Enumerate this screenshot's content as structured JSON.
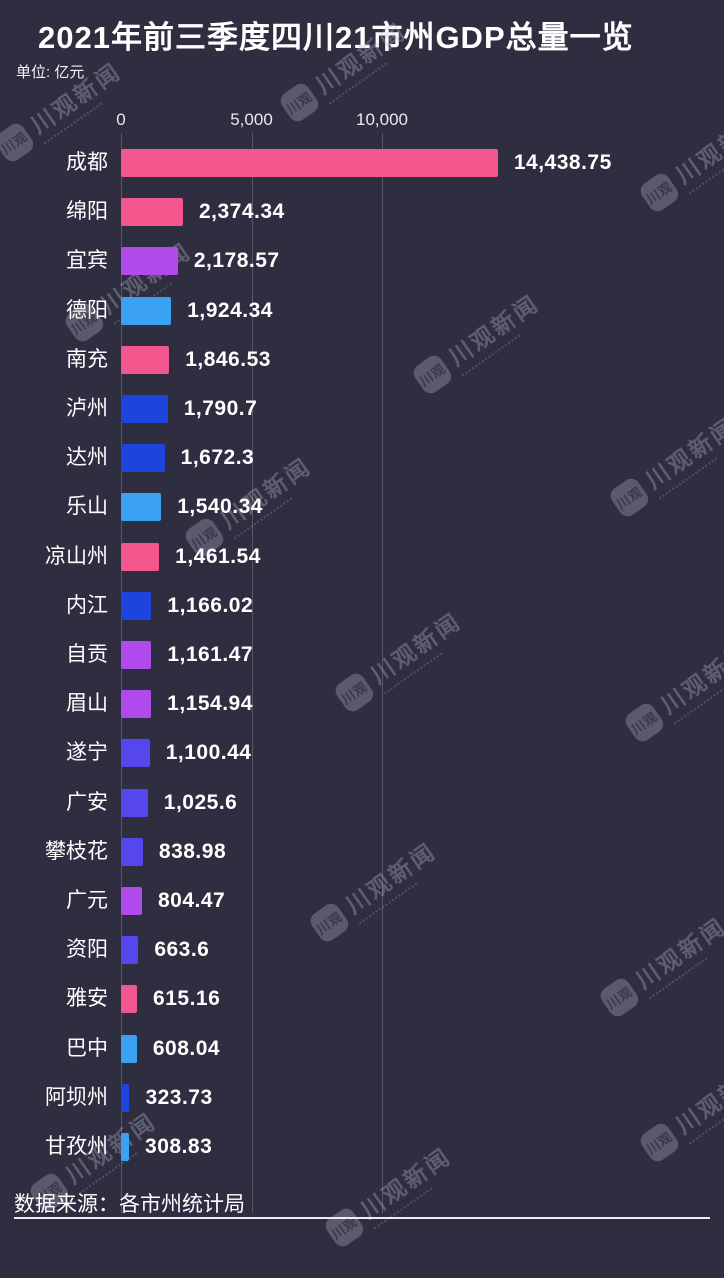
{
  "title": "2021年前三季度四川21市州GDP总量一览",
  "unit_label": "单位: 亿元",
  "source_label": "数据来源：各市州统计局",
  "watermark": {
    "tile_text": "川观",
    "brand_text": "川观新闻"
  },
  "colors": {
    "background": "#2f2d40",
    "text": "#ffffff",
    "gridline": "rgba(235,235,245,0.22)",
    "pink": "#f3558d",
    "purple": "#b14aea",
    "lightblue": "#3ba2f2",
    "blue": "#1e44de",
    "violet": "#5546ee"
  },
  "chart_data": {
    "type": "bar",
    "orientation": "horizontal",
    "title": "2021年前三季度四川21市州GDP总量一览",
    "unit": "亿元",
    "xlabel": "",
    "ylabel": "",
    "xlim": [
      0,
      15000
    ],
    "grid": true,
    "x_ticks": [
      {
        "label": "0",
        "value": 0
      },
      {
        "label": "5,000",
        "value": 5000
      },
      {
        "label": "10,000",
        "value": 10000
      }
    ],
    "categories": [
      "成都",
      "绵阳",
      "宜宾",
      "德阳",
      "南充",
      "泸州",
      "达州",
      "乐山",
      "凉山州",
      "内江",
      "自贡",
      "眉山",
      "遂宁",
      "广安",
      "攀枝花",
      "广元",
      "资阳",
      "雅安",
      "巴中",
      "阿坝州",
      "甘孜州"
    ],
    "values": [
      14438.75,
      2374.34,
      2178.57,
      1924.34,
      1846.53,
      1790.7,
      1672.3,
      1540.34,
      1461.54,
      1166.02,
      1161.47,
      1154.94,
      1100.44,
      1025.6,
      838.98,
      804.47,
      663.6,
      615.16,
      608.04,
      323.73,
      308.83
    ],
    "value_labels": [
      "14,438.75",
      "2,374.34",
      "2,178.57",
      "1,924.34",
      "1,846.53",
      "1,790.7",
      "1,672.3",
      "1,540.34",
      "1,461.54",
      "1,166.02",
      "1,161.47",
      "1,154.94",
      "1,100.44",
      "1,025.6",
      "838.98",
      "804.47",
      "663.6",
      "615.16",
      "608.04",
      "323.73",
      "308.83"
    ],
    "bar_color_keys": [
      "pink",
      "pink",
      "purple",
      "lightblue",
      "pink",
      "blue",
      "blue",
      "lightblue",
      "pink",
      "blue",
      "purple",
      "purple",
      "violet",
      "violet",
      "violet",
      "purple",
      "violet",
      "pink",
      "lightblue",
      "blue",
      "lightblue"
    ]
  }
}
